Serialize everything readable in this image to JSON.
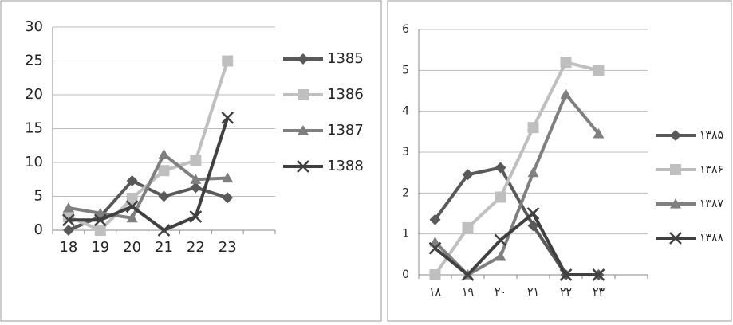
{
  "chart_data": [
    {
      "type": "line",
      "categories": [
        "18",
        "19",
        "20",
        "21",
        "22",
        "23"
      ],
      "ylim": [
        0,
        30
      ],
      "yticks": [
        0,
        5,
        10,
        15,
        20,
        25,
        30
      ],
      "grid": true,
      "legend": "right",
      "series": [
        {
          "name": "1385",
          "color": "#595959",
          "marker": "diamond",
          "values": [
            0,
            2,
            7.3,
            5,
            6.3,
            4.8
          ]
        },
        {
          "name": "1386",
          "color": "#bfbfbf",
          "marker": "square",
          "values": [
            2,
            0,
            4.7,
            8.8,
            10.3,
            25
          ]
        },
        {
          "name": "1387",
          "color": "#7f7f7f",
          "marker": "triangle",
          "values": [
            3.3,
            2.5,
            1.8,
            11.2,
            7.5,
            7.7
          ]
        },
        {
          "name": "1388",
          "color": "#404040",
          "marker": "x",
          "values": [
            1.5,
            1.5,
            3.5,
            0,
            2,
            16.6
          ]
        }
      ]
    },
    {
      "type": "line",
      "categories": [
        "۱۸",
        "۱۹",
        "۲۰",
        "۲۱",
        "۲۲",
        "۲۳"
      ],
      "ylim": [
        0,
        6
      ],
      "yticks": [
        0,
        1,
        2,
        3,
        4,
        5,
        6
      ],
      "grid": true,
      "legend": "right",
      "series": [
        {
          "name": "۱۳۸۵",
          "color": "#595959",
          "marker": "diamond",
          "values": [
            1.35,
            2.45,
            2.62,
            1.2,
            0,
            0
          ]
        },
        {
          "name": "۱۳۸۶",
          "color": "#bfbfbf",
          "marker": "square",
          "values": [
            0,
            1.15,
            1.9,
            3.6,
            5.2,
            5.0
          ]
        },
        {
          "name": "۱۳۸۷",
          "color": "#7f7f7f",
          "marker": "triangle",
          "values": [
            0.8,
            0,
            0.45,
            2.5,
            4.42,
            3.45
          ]
        },
        {
          "name": "۱۳۸۸",
          "color": "#404040",
          "marker": "x",
          "values": [
            0.65,
            0,
            0.85,
            1.5,
            0,
            0
          ]
        }
      ]
    }
  ]
}
